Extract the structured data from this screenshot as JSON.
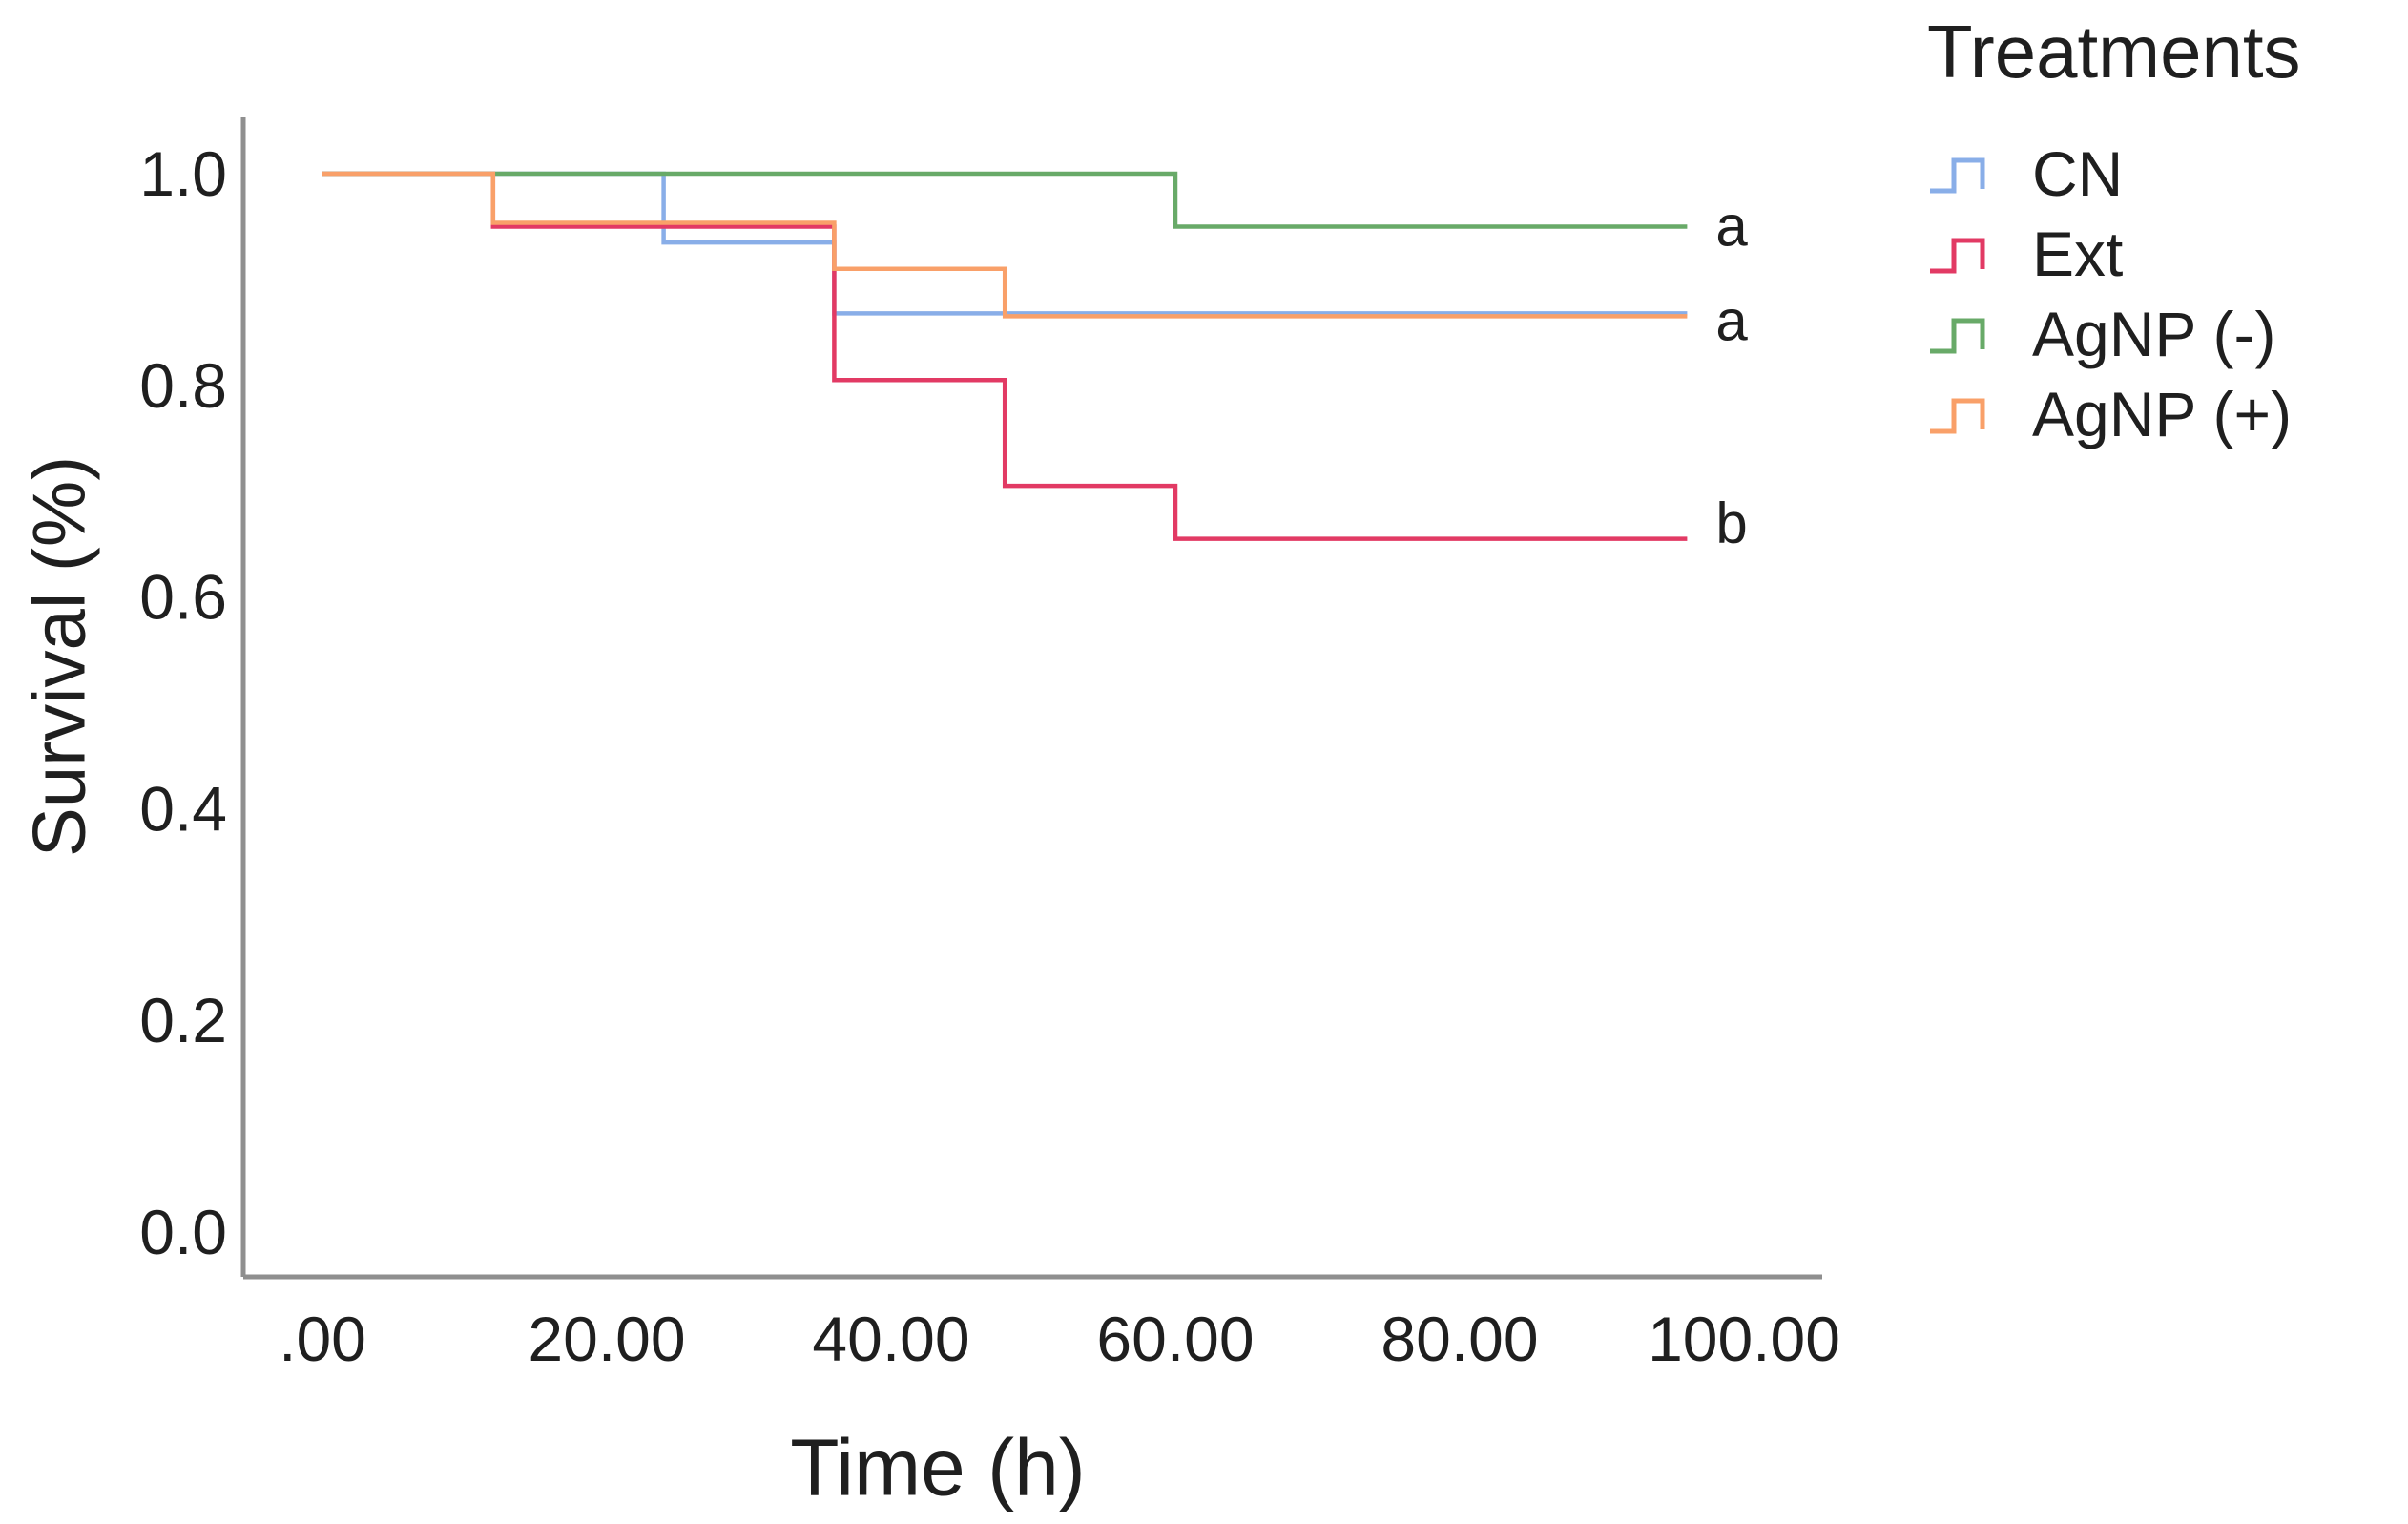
{
  "figure": {
    "background": "#ffffff",
    "text_color": "#1f1f1f",
    "axis_line_color": "#8f8f8f"
  },
  "chart_data": {
    "type": "line",
    "subtype": "kaplan-meier-step-survival",
    "title": "",
    "xlabel": "Time (h)",
    "ylabel": "Survival (%)",
    "xlim": [
      0,
      105.5
    ],
    "ylim": [
      -0.043,
      1.053
    ],
    "grid": false,
    "x_ticks": [
      {
        "label": ".00",
        "value": 0
      },
      {
        "label": "20.00",
        "value": 20
      },
      {
        "label": "40.00",
        "value": 40
      },
      {
        "label": "60.00",
        "value": 60
      },
      {
        "label": "80.00",
        "value": 80
      },
      {
        "label": "100.00",
        "value": 100
      }
    ],
    "y_ticks": [
      {
        "label": "0.0",
        "value": 0.0
      },
      {
        "label": "0.2",
        "value": 0.2
      },
      {
        "label": "0.4",
        "value": 0.4
      },
      {
        "label": "0.6",
        "value": 0.6
      },
      {
        "label": "0.8",
        "value": 0.8
      },
      {
        "label": "1.0",
        "value": 1.0
      }
    ],
    "legend": {
      "title": "Treatments",
      "position": "top-right"
    },
    "series": [
      {
        "name": "CN",
        "color": "#89AEE8",
        "steps": [
          [
            0,
            1.0
          ],
          [
            24,
            0.935
          ],
          [
            36,
            0.868
          ],
          [
            96,
            0.868
          ]
        ]
      },
      {
        "name": "Ext",
        "color": "#E23A64",
        "steps": [
          [
            0,
            1.0
          ],
          [
            12,
            0.95
          ],
          [
            36,
            0.805
          ],
          [
            48,
            0.705
          ],
          [
            60,
            0.655
          ],
          [
            96,
            0.655
          ]
        ]
      },
      {
        "name": "AgNP (-)",
        "color": "#68AA68",
        "steps": [
          [
            0,
            1.0
          ],
          [
            60,
            0.95
          ],
          [
            96,
            0.95
          ]
        ]
      },
      {
        "name": "AgNP (+)",
        "color": "#F9A069",
        "steps": [
          [
            0,
            1.0
          ],
          [
            12,
            0.95
          ],
          [
            36,
            0.91
          ],
          [
            48,
            0.868
          ],
          [
            96,
            0.868
          ]
        ]
      }
    ],
    "annotations": [
      {
        "text": "a",
        "series": "AgNP (-)"
      },
      {
        "text": "a",
        "series": "CN"
      },
      {
        "text": "b",
        "series": "Ext"
      }
    ]
  }
}
